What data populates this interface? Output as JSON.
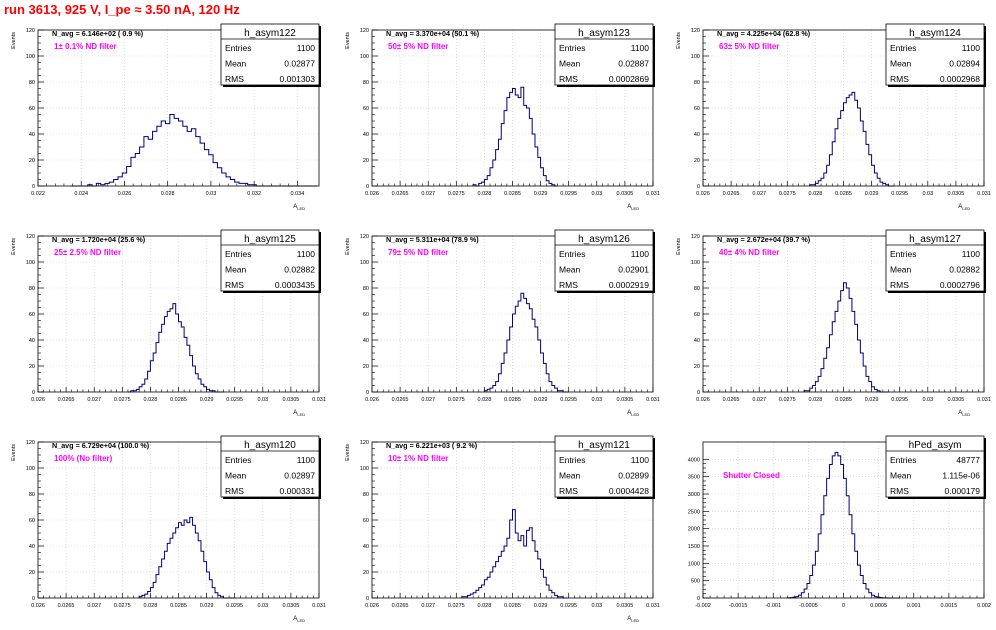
{
  "page": {
    "title": "run 3613,   925 V, I_pe ≈ 3.50 nA, 120 Hz",
    "colors": {
      "histogram": "#00007f",
      "annotation": "#ff00ff",
      "title": "#ff0000",
      "axis": "#000000",
      "grid": "#c8c8c8"
    }
  },
  "chart_data": [
    {
      "type": "histogram",
      "name": "h_asym122",
      "stats": {
        "entries": "1100",
        "mean": "0.02877",
        "rms": "0.001303"
      },
      "navg_text": "N_avg = 6.146e+02 ( 0.9 %)",
      "filter_text": "1± 0.1% ND filter",
      "ylabel": "Events",
      "xlabel": "A_LED",
      "xlim": [
        0.022,
        0.035
      ],
      "ylim": [
        0,
        120
      ],
      "xticks": [
        "0.022",
        "0.024",
        "0.026",
        "0.028",
        "0.03",
        "0.032",
        "0.034"
      ],
      "xtick_values": [
        0.022,
        0.024,
        0.026,
        0.028,
        0.03,
        0.032,
        0.034
      ],
      "yticks": [
        0,
        20,
        40,
        60,
        80,
        100,
        120
      ],
      "bin_start": 0.0235,
      "bin_width": 0.0002,
      "counts": [
        0,
        0,
        0,
        0,
        1,
        0,
        2,
        1,
        2,
        3,
        5,
        7,
        10,
        15,
        22,
        25,
        30,
        38,
        36,
        42,
        46,
        50,
        48,
        55,
        52,
        50,
        46,
        42,
        44,
        38,
        33,
        28,
        24,
        18,
        14,
        10,
        7,
        5,
        3,
        2,
        2,
        1,
        1,
        0,
        0,
        0,
        0,
        0,
        0,
        0,
        0,
        0,
        0,
        0,
        0,
        0,
        0
      ]
    },
    {
      "type": "histogram",
      "name": "h_asym123",
      "stats": {
        "entries": "1100",
        "mean": "0.02887",
        "rms": "0.0002869"
      },
      "navg_text": "N_avg = 3.370e+04 (50.1 %)",
      "filter_text": "50± 5% ND filter",
      "ylabel": "Events",
      "xlabel": "A_LED",
      "xlim": [
        0.026,
        0.031
      ],
      "ylim": [
        0,
        120
      ],
      "xticks": [
        "0.026",
        "0.0265",
        "0.027",
        "0.0275",
        "0.028",
        "0.0285",
        "0.029",
        "0.0295",
        "0.03",
        "0.0305",
        "0.031"
      ],
      "xtick_values": [
        0.026,
        0.0265,
        0.027,
        0.0275,
        0.028,
        0.0285,
        0.029,
        0.0295,
        0.03,
        0.0305,
        0.031
      ],
      "yticks": [
        0,
        20,
        40,
        60,
        80,
        100,
        120
      ],
      "bin_start": 0.0278,
      "bin_width": 5e-05,
      "counts": [
        1,
        0,
        2,
        3,
        5,
        8,
        14,
        20,
        28,
        36,
        48,
        58,
        68,
        72,
        75,
        70,
        68,
        76,
        62,
        60,
        52,
        40,
        30,
        22,
        14,
        8,
        4,
        2,
        1,
        0
      ]
    },
    {
      "type": "histogram",
      "name": "h_asym124",
      "stats": {
        "entries": "1100",
        "mean": "0.02894",
        "rms": "0.0002968"
      },
      "navg_text": "N_avg = 4.225e+04 (62.8 %)",
      "filter_text": "63± 5% ND filter",
      "ylabel": "Events",
      "xlabel": "A_LED",
      "xlim": [
        0.026,
        0.031
      ],
      "ylim": [
        0,
        120
      ],
      "xticks": [
        "0.026",
        "0.0265",
        "0.027",
        "0.0275",
        "0.028",
        "0.0285",
        "0.029",
        "0.0295",
        "0.03",
        "0.0305",
        "0.031"
      ],
      "xtick_values": [
        0.026,
        0.0265,
        0.027,
        0.0275,
        0.028,
        0.0285,
        0.029,
        0.0295,
        0.03,
        0.0305,
        0.031
      ],
      "yticks": [
        0,
        20,
        40,
        60,
        80,
        100,
        120
      ],
      "bin_start": 0.0279,
      "bin_width": 5e-05,
      "counts": [
        1,
        1,
        2,
        4,
        6,
        10,
        16,
        24,
        34,
        44,
        52,
        58,
        64,
        68,
        70,
        72,
        66,
        60,
        50,
        42,
        32,
        24,
        16,
        10,
        6,
        3,
        2,
        1,
        0,
        0
      ]
    },
    {
      "type": "histogram",
      "name": "h_asym125",
      "stats": {
        "entries": "1100",
        "mean": "0.02882",
        "rms": "0.0003435"
      },
      "navg_text": "N_avg = 1.720e+04 (25.6 %)",
      "filter_text": "25± 2.5% ND filter",
      "ylabel": "Events",
      "xlabel": "A_LED",
      "xlim": [
        0.026,
        0.031
      ],
      "ylim": [
        0,
        120
      ],
      "xticks": [
        "0.026",
        "0.0265",
        "0.027",
        "0.0275",
        "0.028",
        "0.0285",
        "0.029",
        "0.0295",
        "0.03",
        "0.0305",
        "0.031"
      ],
      "xtick_values": [
        0.026,
        0.0265,
        0.027,
        0.0275,
        0.028,
        0.0285,
        0.029,
        0.0295,
        0.03,
        0.0305,
        0.031
      ],
      "yticks": [
        0,
        20,
        40,
        60,
        80,
        100,
        120
      ],
      "bin_start": 0.0276,
      "bin_width": 5e-05,
      "counts": [
        0,
        1,
        1,
        2,
        4,
        6,
        10,
        16,
        24,
        30,
        38,
        46,
        52,
        58,
        62,
        64,
        68,
        60,
        54,
        50,
        42,
        36,
        28,
        20,
        14,
        10,
        6,
        4,
        2,
        1,
        1,
        0,
        0,
        0
      ]
    },
    {
      "type": "histogram",
      "name": "h_asym126",
      "stats": {
        "entries": "1100",
        "mean": "0.02901",
        "rms": "0.0002919"
      },
      "navg_text": "N_avg = 5.311e+04 (78.9 %)",
      "filter_text": "79± 5% ND filter",
      "ylabel": "Events",
      "xlabel": "A_LED",
      "xlim": [
        0.026,
        0.031
      ],
      "ylim": [
        0,
        120
      ],
      "xticks": [
        "0.026",
        "0.0265",
        "0.027",
        "0.0275",
        "0.028",
        "0.0285",
        "0.029",
        "0.0295",
        "0.03",
        "0.0305",
        "0.031"
      ],
      "xtick_values": [
        0.026,
        0.0265,
        0.027,
        0.0275,
        0.028,
        0.0285,
        0.029,
        0.0295,
        0.03,
        0.0305,
        0.031
      ],
      "yticks": [
        0,
        20,
        40,
        60,
        80,
        100,
        120
      ],
      "bin_start": 0.028,
      "bin_width": 5e-05,
      "counts": [
        1,
        2,
        3,
        5,
        8,
        14,
        22,
        30,
        40,
        50,
        60,
        66,
        70,
        76,
        72,
        68,
        64,
        56,
        50,
        40,
        30,
        22,
        14,
        8,
        5,
        3,
        1,
        1,
        0,
        0
      ]
    },
    {
      "type": "histogram",
      "name": "h_asym127",
      "stats": {
        "entries": "1100",
        "mean": "0.02882",
        "rms": "0.0002796"
      },
      "navg_text": "N_avg = 2.672e+04 (39.7 %)",
      "filter_text": "40± 4% ND filter",
      "ylabel": "Events",
      "xlabel": "A_LED",
      "xlim": [
        0.026,
        0.031
      ],
      "ylim": [
        0,
        120
      ],
      "xticks": [
        "0.026",
        "0.0265",
        "0.027",
        "0.0275",
        "0.028",
        "0.0285",
        "0.029",
        "0.0295",
        "0.03",
        "0.0305",
        "0.031"
      ],
      "xtick_values": [
        0.026,
        0.0265,
        0.027,
        0.0275,
        0.028,
        0.0285,
        0.029,
        0.0295,
        0.03,
        0.0305,
        0.031
      ],
      "yticks": [
        0,
        20,
        40,
        60,
        80,
        100,
        120
      ],
      "bin_start": 0.0278,
      "bin_width": 5e-05,
      "counts": [
        1,
        1,
        3,
        5,
        8,
        12,
        18,
        26,
        34,
        44,
        54,
        62,
        70,
        78,
        84,
        80,
        72,
        62,
        52,
        40,
        30,
        20,
        12,
        8,
        4,
        2,
        1,
        0,
        0,
        0
      ]
    },
    {
      "type": "histogram",
      "name": "h_asym120",
      "stats": {
        "entries": "1100",
        "mean": "0.02897",
        "rms": "0.000331"
      },
      "navg_text": "N_avg = 6.729e+04 (100.0 %)",
      "filter_text": "100% (No filter)",
      "ylabel": "Events",
      "xlabel": "A_LED",
      "xlim": [
        0.026,
        0.031
      ],
      "ylim": [
        0,
        120
      ],
      "xticks": [
        "0.026",
        "0.0265",
        "0.027",
        "0.0275",
        "0.028",
        "0.0285",
        "0.029",
        "0.0295",
        "0.03",
        "0.0305",
        "0.031"
      ],
      "xtick_values": [
        0.026,
        0.0265,
        0.027,
        0.0275,
        0.028,
        0.0285,
        0.029,
        0.0295,
        0.03,
        0.0305,
        0.031
      ],
      "yticks": [
        0,
        20,
        40,
        60,
        80,
        100,
        120
      ],
      "bin_start": 0.0278,
      "bin_width": 5e-05,
      "counts": [
        1,
        2,
        3,
        5,
        8,
        12,
        18,
        24,
        30,
        36,
        42,
        46,
        50,
        54,
        58,
        56,
        60,
        58,
        62,
        56,
        50,
        44,
        36,
        28,
        20,
        14,
        8,
        4,
        2,
        1,
        0,
        0,
        0,
        0
      ]
    },
    {
      "type": "histogram",
      "name": "h_asym121",
      "stats": {
        "entries": "1100",
        "mean": "0.02899",
        "rms": "0.0004428"
      },
      "navg_text": "N_avg = 6.221e+03 ( 9.2 %)",
      "filter_text": "10± 1% ND filter",
      "ylabel": "Events",
      "xlabel": "A_LED",
      "xlim": [
        0.026,
        0.031
      ],
      "ylim": [
        0,
        120
      ],
      "xticks": [
        "0.026",
        "0.0265",
        "0.027",
        "0.0275",
        "0.028",
        "0.0285",
        "0.029",
        "0.0295",
        "0.03",
        "0.0305",
        "0.031"
      ],
      "xtick_values": [
        0.026,
        0.0265,
        0.027,
        0.0275,
        0.028,
        0.0285,
        0.029,
        0.0295,
        0.03,
        0.0305,
        0.031
      ],
      "yticks": [
        0,
        20,
        40,
        60,
        80,
        100,
        120
      ],
      "bin_start": 0.0276,
      "bin_width": 5e-05,
      "counts": [
        1,
        1,
        2,
        3,
        4,
        6,
        8,
        10,
        14,
        16,
        20,
        24,
        28,
        32,
        36,
        40,
        46,
        60,
        68,
        50,
        44,
        48,
        40,
        52,
        54,
        44,
        36,
        30,
        22,
        16,
        10,
        6,
        4,
        2,
        1,
        1,
        0,
        0
      ]
    },
    {
      "type": "histogram",
      "name": "hPed_asym",
      "stats": {
        "entries": "48777",
        "mean": "1.115e-06",
        "rms": "0.000179"
      },
      "navg_text": "",
      "filter_text": "Shutter Closed",
      "ylabel": "",
      "xlabel": "",
      "xlim": [
        -0.002,
        0.002
      ],
      "ylim": [
        0,
        4500
      ],
      "xticks": [
        "-0.002",
        "-0.0015",
        "-0.001",
        "-0.0005",
        "0",
        "0.0005",
        "0.001",
        "0.0015",
        "0.002"
      ],
      "xtick_values": [
        -0.002,
        -0.0015,
        -0.001,
        -0.0005,
        0,
        0.0005,
        0.001,
        0.0015,
        0.002
      ],
      "yticks": [
        0,
        500,
        1000,
        1500,
        2000,
        2500,
        3000,
        3500,
        4000
      ],
      "bin_start": -0.0008,
      "bin_width": 4e-05,
      "counts": [
        5,
        10,
        20,
        40,
        80,
        150,
        260,
        420,
        650,
        950,
        1350,
        1850,
        2400,
        2950,
        3450,
        3850,
        4100,
        4200,
        4100,
        3850,
        3450,
        2950,
        2400,
        1850,
        1350,
        950,
        650,
        420,
        260,
        150,
        80,
        40,
        20,
        10,
        5,
        2,
        1,
        0,
        0,
        0
      ]
    }
  ]
}
